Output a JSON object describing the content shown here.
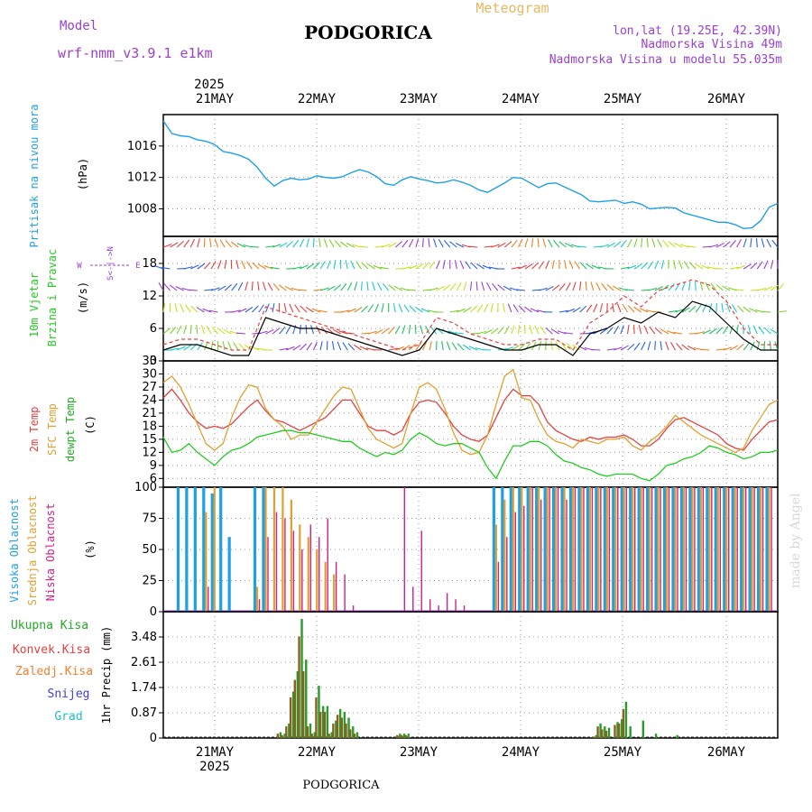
{
  "header": {
    "model_label": "Model",
    "model_name": "wrf-nmm_v3.9.1 e1km",
    "city": "PODGORICA",
    "meteogram": "Meteogram",
    "lonlat": "lon,lat (19.25E, 42.39N)",
    "elevation": "Nadmorska Visina 49m",
    "elevation_model": "Nadmorska Visina u modelu 55.035m",
    "footer_city": "PODGORICA",
    "watermark": "made by Angel"
  },
  "time_axis": {
    "year": "2025",
    "labels": [
      "21MAY",
      "22MAY",
      "23MAY",
      "24MAY",
      "25MAY",
      "26MAY"
    ],
    "hours_start": 0,
    "hours_end": 144
  },
  "chart_data": [
    {
      "type": "line",
      "panel": "pressure",
      "ylabel": "Pritisak na nivou mora",
      "unit": "(hPa)",
      "yticks": [
        1008,
        1012,
        1016
      ],
      "ylim": [
        1004.5,
        1020
      ],
      "color": "#1ea0e6",
      "x": [
        0,
        2,
        4,
        6,
        8,
        10,
        12,
        14,
        16,
        18,
        20,
        22,
        24,
        26,
        28,
        30,
        32,
        34,
        36,
        38,
        40,
        42,
        44,
        46,
        48,
        50,
        52,
        54,
        56,
        58,
        60,
        62,
        64,
        66,
        68,
        70,
        72,
        74,
        76,
        78,
        80,
        82,
        84,
        86,
        88,
        90,
        92,
        94,
        96,
        98,
        100,
        102,
        104,
        106,
        108,
        110,
        112,
        114,
        116,
        118,
        120,
        122,
        124,
        126,
        128,
        130,
        132,
        134,
        136,
        138,
        140,
        142,
        144
      ],
      "values": [
        1019.2,
        1017.6,
        1017.3,
        1017.2,
        1016.8,
        1016.6,
        1016.2,
        1015.3,
        1015.1,
        1014.8,
        1014.3,
        1013.3,
        1011.9,
        1010.9,
        1011.6,
        1011.9,
        1011.7,
        1011.8,
        1012.2,
        1012.0,
        1011.9,
        1012.1,
        1012.6,
        1013.0,
        1012.7,
        1012.1,
        1011.2,
        1011.0,
        1011.7,
        1012.1,
        1011.8,
        1011.6,
        1011.3,
        1011.4,
        1011.7,
        1011.4,
        1011.0,
        1010.4,
        1010.1,
        1010.7,
        1011.3,
        1012.0,
        1011.9,
        1011.3,
        1010.7,
        1011.2,
        1011.3,
        1010.8,
        1010.3,
        1009.8,
        1009.0,
        1008.9,
        1009.0,
        1009.1,
        1008.7,
        1008.9,
        1008.6,
        1008.0,
        1008.1,
        1008.2,
        1008.1,
        1007.5,
        1007.2,
        1006.9,
        1006.6,
        1006.3,
        1006.3,
        1006.0,
        1005.5,
        1005.6,
        1006.5,
        1008.2,
        1008.7
      ]
    },
    {
      "type": "barb",
      "panel": "wind",
      "ylabel": "10m Vjetar Brzina i Pravac",
      "unit": "(m/s)",
      "compass": [
        "N",
        "S",
        "E",
        "W"
      ],
      "yticks": [
        0,
        6,
        12,
        18
      ],
      "ylim": [
        0,
        23
      ],
      "speed_color": "#000000",
      "gust_color": "#e64040",
      "x": [
        0,
        4,
        8,
        12,
        16,
        20,
        24,
        28,
        32,
        36,
        40,
        44,
        48,
        52,
        56,
        60,
        64,
        68,
        72,
        76,
        80,
        84,
        88,
        92,
        96,
        100,
        104,
        108,
        112,
        116,
        120,
        124,
        128,
        132,
        136,
        140,
        144
      ],
      "speed": [
        2,
        3,
        3,
        2,
        1,
        1,
        8,
        7,
        6,
        6,
        5,
        4,
        3,
        2,
        1,
        2,
        6,
        5,
        4,
        3,
        2,
        2,
        3,
        3,
        1,
        5,
        6,
        8,
        7,
        9,
        8,
        11,
        10,
        7,
        4,
        2,
        2
      ],
      "gust": [
        3,
        4,
        4,
        3,
        2,
        2,
        10,
        9,
        8,
        7,
        6,
        5,
        4,
        3,
        2,
        3,
        8,
        7,
        5,
        4,
        3,
        3,
        4,
        4,
        2,
        7,
        9,
        12,
        10,
        13,
        14,
        15,
        14,
        11,
        6,
        3,
        3
      ]
    },
    {
      "type": "line",
      "panel": "temperature",
      "ylabel": [
        "2m Temp",
        "SFC Temp",
        "dewpt Temp"
      ],
      "unit": "(C)",
      "yticks": [
        6,
        9,
        12,
        15,
        18,
        21,
        24,
        27,
        30,
        33
      ],
      "ylim": [
        4,
        33
      ],
      "x": [
        0,
        2,
        4,
        6,
        8,
        10,
        12,
        14,
        16,
        18,
        20,
        22,
        24,
        26,
        28,
        30,
        32,
        34,
        36,
        38,
        40,
        42,
        44,
        46,
        48,
        50,
        52,
        54,
        56,
        58,
        60,
        62,
        64,
        66,
        68,
        70,
        72,
        74,
        76,
        78,
        80,
        82,
        84,
        86,
        88,
        90,
        92,
        94,
        96,
        98,
        100,
        102,
        104,
        106,
        108,
        110,
        112,
        114,
        116,
        118,
        120,
        122,
        124,
        126,
        128,
        130,
        132,
        134,
        136,
        138,
        140,
        142,
        144
      ],
      "series": [
        {
          "name": "2m Temp",
          "color": "#e64040",
          "values": [
            24.5,
            26.5,
            24.0,
            21.0,
            19.0,
            17.5,
            18.0,
            17.5,
            18.5,
            20.5,
            22.5,
            24.0,
            21.5,
            19.5,
            19.0,
            18.0,
            17.0,
            18.0,
            19.0,
            20.0,
            22.0,
            24.0,
            24.0,
            21.0,
            18.0,
            17.0,
            17.0,
            16.0,
            17.0,
            21.0,
            23.5,
            24.0,
            23.5,
            21.0,
            18.0,
            16.0,
            15.0,
            14.5,
            16.0,
            20.0,
            24.0,
            26.5,
            25.0,
            25.0,
            23.0,
            19.0,
            17.0,
            16.0,
            15.0,
            14.5,
            15.5,
            15.0,
            15.5,
            15.5,
            16.0,
            15.0,
            13.5,
            13.5,
            15.0,
            17.5,
            19.5,
            20.0,
            19.0,
            18.0,
            17.0,
            16.0,
            14.0,
            13.0,
            12.5,
            15.0,
            17.0,
            19.0,
            19.5
          ]
        },
        {
          "name": "SFC Temp",
          "color": "#e0a030",
          "values": [
            28.0,
            29.5,
            27.0,
            23.0,
            18.5,
            14.0,
            12.5,
            14.0,
            20.0,
            24.5,
            27.5,
            27.0,
            22.0,
            19.5,
            18.0,
            15.0,
            16.0,
            16.0,
            19.0,
            22.0,
            25.0,
            27.0,
            26.5,
            22.0,
            17.5,
            15.0,
            14.0,
            13.0,
            14.0,
            21.0,
            27.0,
            28.0,
            26.5,
            22.0,
            16.5,
            12.5,
            11.5,
            12.0,
            16.0,
            23.0,
            29.5,
            31.0,
            24.5,
            24.0,
            19.5,
            16.0,
            14.5,
            14.0,
            13.0,
            15.0,
            14.5,
            14.0,
            15.0,
            15.0,
            15.5,
            13.5,
            12.5,
            14.5,
            16.0,
            18.0,
            20.5,
            19.0,
            17.5,
            16.0,
            15.0,
            14.0,
            13.0,
            12.0,
            13.0,
            17.0,
            20.0,
            23.0,
            24.0
          ]
        },
        {
          "name": "dewpt Temp",
          "color": "#22cc22",
          "values": [
            15.5,
            12.0,
            12.5,
            14.0,
            12.0,
            10.5,
            9.0,
            11.0,
            12.5,
            13.0,
            14.0,
            15.5,
            16.0,
            16.5,
            17.0,
            17.0,
            16.5,
            16.5,
            16.0,
            15.5,
            15.0,
            14.5,
            14.5,
            13.0,
            12.0,
            11.0,
            12.0,
            11.5,
            12.5,
            15.0,
            16.5,
            15.5,
            14.0,
            13.5,
            14.0,
            14.0,
            13.0,
            12.0,
            8.5,
            6.0,
            10.0,
            13.5,
            13.5,
            14.5,
            14.5,
            13.5,
            11.5,
            10.0,
            9.5,
            8.5,
            8.0,
            7.0,
            6.5,
            7.0,
            7.0,
            7.0,
            6.0,
            5.5,
            7.0,
            9.0,
            9.5,
            10.5,
            11.0,
            12.0,
            13.5,
            13.0,
            12.0,
            11.5,
            10.5,
            11.0,
            12.0,
            12.0,
            12.5
          ]
        }
      ]
    },
    {
      "type": "bar",
      "panel": "clouds",
      "ylabel": [
        "Visoka Oblacnost",
        "Srednja Oblacnost",
        "Niska Oblacnost"
      ],
      "unit": "(%)",
      "yticks": [
        0,
        25,
        50,
        75,
        100
      ],
      "ylim": [
        0,
        100
      ],
      "x": [
        0,
        2,
        4,
        6,
        8,
        10,
        12,
        14,
        16,
        18,
        20,
        22,
        24,
        26,
        28,
        30,
        32,
        34,
        36,
        38,
        40,
        42,
        44,
        46,
        48,
        50,
        52,
        54,
        56,
        58,
        60,
        62,
        64,
        66,
        68,
        70,
        72,
        74,
        76,
        78,
        80,
        82,
        84,
        86,
        88,
        90,
        92,
        94,
        96,
        98,
        100,
        102,
        104,
        106,
        108,
        110,
        112,
        114,
        116,
        118,
        120,
        122,
        124,
        126,
        128,
        130,
        132,
        134,
        136,
        138,
        140,
        142
      ],
      "series": [
        {
          "name": "Visoka Oblacnost",
          "color": "#1ea0e6",
          "values": [
            0,
            0,
            100,
            100,
            100,
            100,
            95,
            100,
            60,
            0,
            0,
            100,
            100,
            0,
            0,
            0,
            0,
            0,
            0,
            0,
            0,
            0,
            0,
            0,
            0,
            0,
            0,
            0,
            0,
            0,
            0,
            0,
            0,
            0,
            0,
            0,
            0,
            0,
            0,
            100,
            100,
            100,
            100,
            100,
            100,
            100,
            100,
            100,
            100,
            100,
            100,
            100,
            100,
            100,
            100,
            100,
            100,
            100,
            100,
            100,
            100,
            100,
            100,
            100,
            100,
            100,
            100,
            100,
            100,
            100,
            100,
            100
          ]
        },
        {
          "name": "Srednja Oblacnost",
          "color": "#e0a030",
          "values": [
            0,
            0,
            0,
            0,
            0,
            80,
            100,
            0,
            0,
            0,
            0,
            20,
            100,
            100,
            100,
            90,
            70,
            60,
            50,
            40,
            30,
            0,
            0,
            0,
            0,
            0,
            0,
            0,
            0,
            0,
            0,
            0,
            0,
            0,
            0,
            0,
            0,
            0,
            0,
            70,
            90,
            100,
            100,
            100,
            100,
            100,
            100,
            100,
            100,
            100,
            100,
            100,
            100,
            100,
            100,
            100,
            100,
            100,
            100,
            100,
            100,
            100,
            100,
            100,
            100,
            100,
            100,
            100,
            100,
            100,
            100,
            100
          ]
        },
        {
          "name": "Niska Oblacnost",
          "color": "#d0208a",
          "values": [
            0,
            0,
            0,
            0,
            0,
            20,
            0,
            0,
            0,
            0,
            0,
            10,
            60,
            80,
            75,
            65,
            50,
            70,
            60,
            75,
            40,
            30,
            5,
            0,
            0,
            0,
            0,
            0,
            100,
            20,
            65,
            10,
            5,
            15,
            10,
            5,
            0,
            0,
            0,
            40,
            60,
            80,
            85,
            100,
            90,
            100,
            100,
            90,
            100,
            100,
            100,
            100,
            100,
            100,
            100,
            100,
            100,
            100,
            100,
            100,
            100,
            100,
            100,
            100,
            100,
            100,
            100,
            100,
            100,
            100,
            100,
            100
          ]
        }
      ]
    },
    {
      "type": "bar",
      "panel": "precipitation",
      "ylabel": "1hr Precip",
      "unit": "(mm)",
      "legend": [
        "Ukupna Kisa",
        "Konvek.Kisa",
        "Zaledj.Kisa",
        "Snijeg",
        "Grad"
      ],
      "legend_colors": [
        "#22aa22",
        "#e64040",
        "#f08030",
        "#4040e0",
        "#20c0c0"
      ],
      "yticks": [
        0,
        0.87,
        1.74,
        2.61,
        3.48
      ],
      "ylim": [
        0,
        4.35
      ],
      "x": [
        27,
        28,
        29,
        30,
        31,
        32,
        33,
        34,
        35,
        36,
        37,
        38,
        39,
        40,
        41,
        42,
        43,
        44,
        45,
        55,
        56,
        57,
        101,
        102,
        103,
        104,
        106,
        107,
        108,
        109,
        112,
        115,
        120
      ],
      "series": [
        {
          "name": "Ukupna Kisa",
          "color": "#2a9a2a",
          "values": [
            0.2,
            0.15,
            0.5,
            1.6,
            2.3,
            4.1,
            2.7,
            0.5,
            0.2,
            1.8,
            1.1,
            1.1,
            0.2,
            0.6,
            1.0,
            0.9,
            0.7,
            0.4,
            0.2,
            0.15,
            0.15,
            0.15,
            0.1,
            0.5,
            0.4,
            0.35,
            0.55,
            0.65,
            1.25,
            0.4,
            0.6,
            0.15,
            0.1
          ]
        },
        {
          "name": "Konvek.Kisa",
          "color": "#8a6020",
          "values": [
            0.15,
            0.1,
            0.4,
            1.4,
            2.0,
            3.5,
            2.3,
            0.4,
            0.15,
            1.4,
            0.9,
            0.9,
            0.15,
            0.5,
            0.8,
            0.7,
            0.5,
            0.3,
            0.15,
            0.1,
            0.1,
            0.1,
            0.05,
            0.4,
            0.3,
            0.25,
            0.45,
            0.5,
            1.0,
            0.0,
            0.0,
            0.0,
            0.0
          ]
        }
      ]
    }
  ]
}
